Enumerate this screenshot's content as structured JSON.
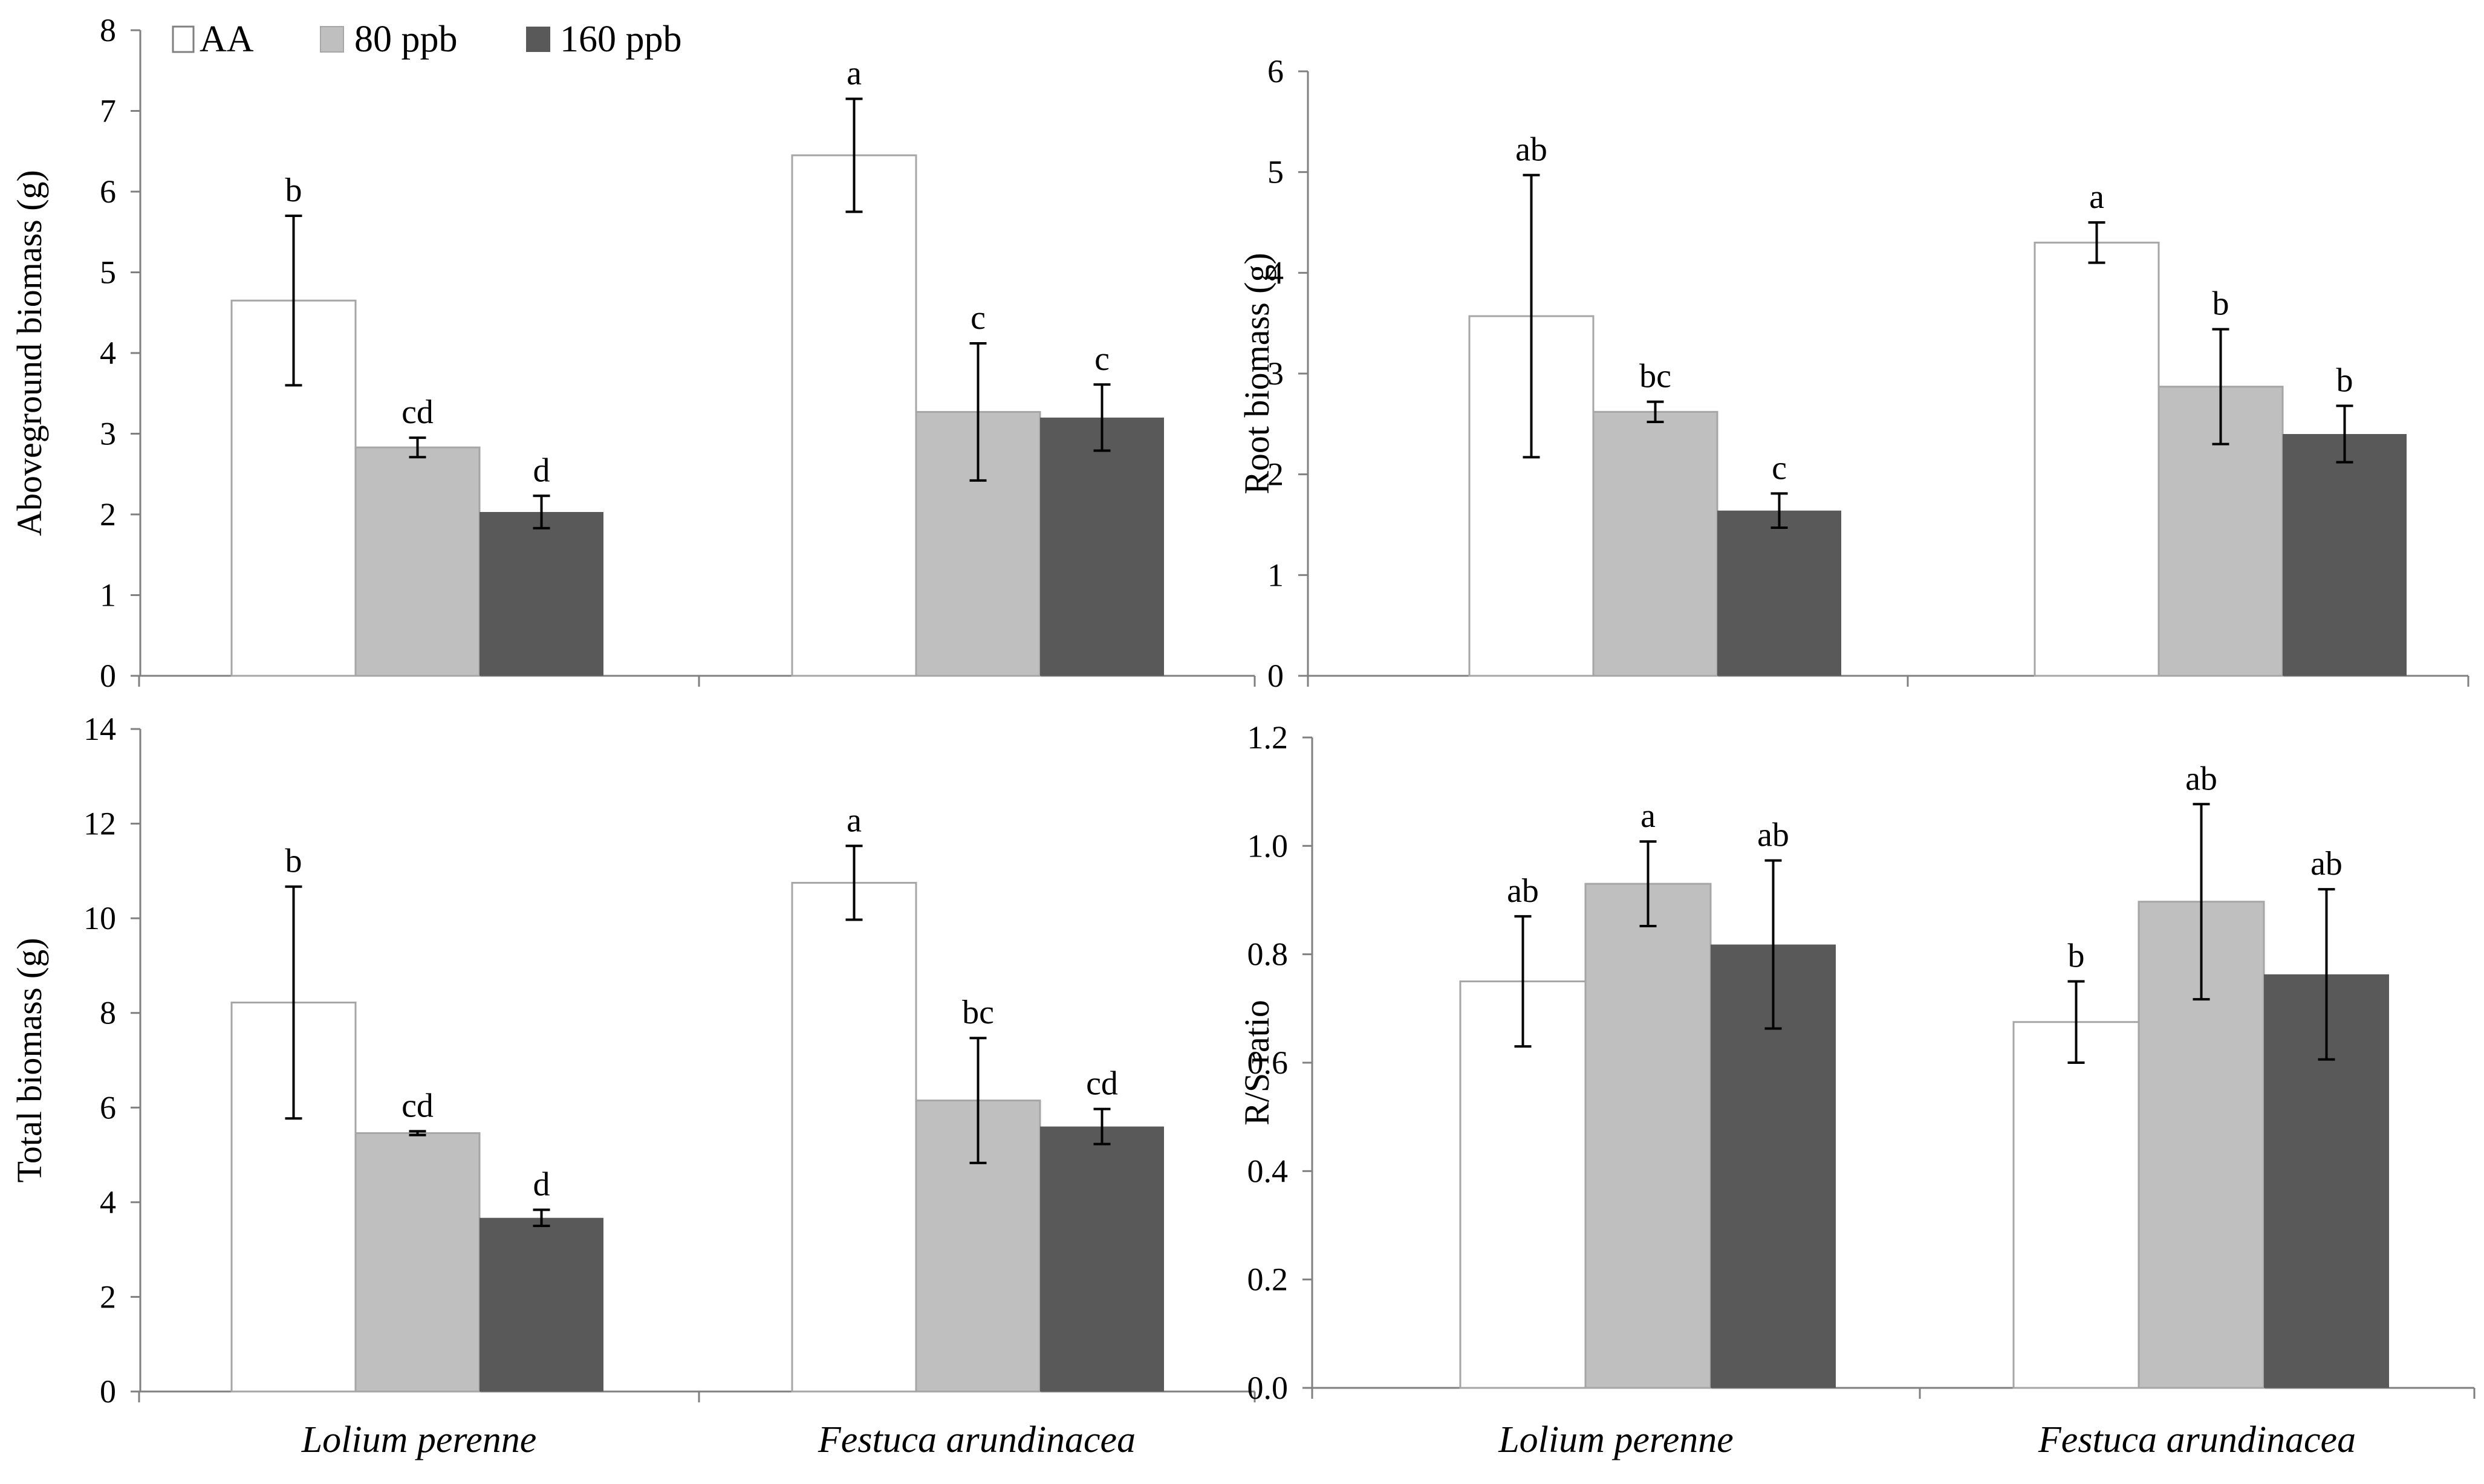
{
  "legend": {
    "entries": [
      {
        "label": "AA",
        "color": "#ffffff"
      },
      {
        "label": "80 ppb",
        "color": "#bfbfbf"
      },
      {
        "label": "160 ppb",
        "color": "#595959"
      }
    ]
  },
  "colors": {
    "aa_fill": "#ffffff",
    "aa_stroke": "#a6a6a6",
    "ppb80_fill": "#bfbfbf",
    "ppb160_fill": "#595959",
    "axis": "#808080",
    "errorbar": "#000000"
  },
  "chart_data": [
    {
      "id": "aboveground",
      "type": "bar",
      "title": "",
      "xlabel": "",
      "ylabel": "Aboveground biomass (g)",
      "ylim": [
        0,
        8
      ],
      "ytick_labels": [
        "0",
        "1",
        "2",
        "3",
        "4",
        "5",
        "6",
        "7",
        "8"
      ],
      "categories": [
        "",
        ""
      ],
      "series": [
        {
          "name": "AA",
          "values": [
            4.65,
            6.45
          ],
          "errors": [
            1.05,
            0.7
          ],
          "labels": [
            "b",
            "a"
          ]
        },
        {
          "name": "80 ppb",
          "values": [
            2.83,
            3.27
          ],
          "errors": [
            0.12,
            0.85
          ],
          "labels": [
            "cd",
            "c"
          ]
        },
        {
          "name": "160 ppb",
          "values": [
            2.03,
            3.2
          ],
          "errors": [
            0.2,
            0.41
          ],
          "labels": [
            "d",
            "c"
          ]
        }
      ]
    },
    {
      "id": "root",
      "type": "bar",
      "title": "",
      "xlabel": "",
      "ylabel": "Root biomass (g)",
      "ylim": [
        0,
        6
      ],
      "ytick_labels": [
        "0",
        "1",
        "2",
        "3",
        "4",
        "5",
        "6"
      ],
      "categories": [
        "",
        ""
      ],
      "series": [
        {
          "name": "AA",
          "values": [
            3.57,
            4.3
          ],
          "errors": [
            1.4,
            0.2
          ],
          "labels": [
            "ab",
            "a"
          ]
        },
        {
          "name": "80 ppb",
          "values": [
            2.62,
            2.87
          ],
          "errors": [
            0.1,
            0.57
          ],
          "labels": [
            "bc",
            "b"
          ]
        },
        {
          "name": "160 ppb",
          "values": [
            1.64,
            2.4
          ],
          "errors": [
            0.17,
            0.28
          ],
          "labels": [
            "c",
            "b"
          ]
        }
      ]
    },
    {
      "id": "total",
      "type": "bar",
      "title": "",
      "xlabel": "",
      "ylabel": "Total  biomass (g)",
      "ylim": [
        0,
        14
      ],
      "ytick_labels": [
        "0",
        "2",
        "4",
        "6",
        "8",
        "10",
        "12",
        "14"
      ],
      "categories": [
        "Lolium perenne",
        "Festuca arundinacea"
      ],
      "series": [
        {
          "name": "AA",
          "values": [
            8.22,
            10.75
          ],
          "errors": [
            2.45,
            0.78
          ],
          "labels": [
            "b",
            "a"
          ]
        },
        {
          "name": "80 ppb",
          "values": [
            5.46,
            6.15
          ],
          "errors": [
            0.04,
            1.32
          ],
          "labels": [
            "cd",
            "bc"
          ]
        },
        {
          "name": "160 ppb",
          "values": [
            3.67,
            5.6
          ],
          "errors": [
            0.17,
            0.37
          ],
          "labels": [
            "d",
            "cd"
          ]
        }
      ]
    },
    {
      "id": "rs_ratio",
      "type": "bar",
      "title": "",
      "xlabel": "",
      "ylabel": "R/S ratio",
      "ylim": [
        0,
        1.2
      ],
      "ytick_labels": [
        "0.0",
        "0.2",
        "0.4",
        "0.6",
        "0.8",
        "1.0",
        "1.2"
      ],
      "categories": [
        "Lolium perenne",
        "Festuca arundinacea"
      ],
      "series": [
        {
          "name": "AA",
          "values": [
            0.75,
            0.675
          ],
          "errors": [
            0.12,
            0.075
          ],
          "labels": [
            "ab",
            "b"
          ]
        },
        {
          "name": "80 ppb",
          "values": [
            0.93,
            0.897
          ],
          "errors": [
            0.078,
            0.18
          ],
          "labels": [
            "a",
            "ab"
          ]
        },
        {
          "name": "160 ppb",
          "values": [
            0.818,
            0.763
          ],
          "errors": [
            0.155,
            0.157
          ],
          "labels": [
            "ab",
            "ab"
          ]
        }
      ]
    }
  ]
}
